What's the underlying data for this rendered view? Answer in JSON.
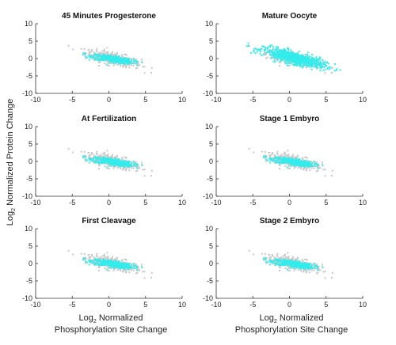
{
  "figure": {
    "ylabel_main": "Log",
    "ylabel_sub": "2",
    "ylabel_rest": " Normalized Protein Change",
    "xlabel_main": "Log",
    "xlabel_sub": "2",
    "xlabel_rest": " Normalized",
    "xlabel_line2": "Phosphorylation Site Change"
  },
  "colors": {
    "background_points": "#c8c8c8",
    "highlight_points": "#33ecec",
    "axis": "#333333"
  },
  "chart_data": [
    {
      "type": "scatter",
      "title": "45 Minutes Progesterone",
      "xlim": [
        -10,
        10
      ],
      "ylim": [
        -10,
        10
      ],
      "xticks": [
        -10,
        -5,
        0,
        5,
        10
      ],
      "yticks": [
        -10,
        -5,
        0,
        5,
        10
      ],
      "series": [
        {
          "role": "all-sites",
          "x_range": [
            -5.5,
            8.5
          ],
          "trend": "y = -0.45x + 0.2"
        },
        {
          "role": "highlighted",
          "x_range": [
            -3.5,
            4.5
          ],
          "trend": "y = -0.3x"
        }
      ]
    },
    {
      "type": "scatter",
      "title": "Mature Oocyte",
      "xlim": [
        -10,
        10
      ],
      "ylim": [
        -10,
        10
      ],
      "xticks": [
        -10,
        -5,
        0,
        5,
        10
      ],
      "yticks": [
        -10,
        -5,
        0,
        5,
        10
      ],
      "series": [
        {
          "role": "all-sites",
          "x_range": [
            -5.5,
            8.5
          ],
          "trend": "y = -0.45x + 0.2"
        },
        {
          "role": "highlighted",
          "x_range": [
            -5.8,
            9.0
          ],
          "trend": "y = -0.5x + 0.5"
        }
      ]
    },
    {
      "type": "scatter",
      "title": "At Fertilization",
      "xlim": [
        -10,
        10
      ],
      "ylim": [
        -10,
        10
      ],
      "xticks": [
        -10,
        -5,
        0,
        5,
        10
      ],
      "yticks": [
        -10,
        -5,
        0,
        5,
        10
      ],
      "series": [
        {
          "role": "all-sites",
          "x_range": [
            -5.5,
            8.5
          ],
          "trend": "y = -0.45x + 0.2"
        },
        {
          "role": "highlighted",
          "x_range": [
            -3.5,
            4.5
          ],
          "trend": "y = -0.3x"
        }
      ]
    },
    {
      "type": "scatter",
      "title": "Stage 1 Embyro",
      "xlim": [
        -10,
        10
      ],
      "ylim": [
        -10,
        10
      ],
      "xticks": [
        -10,
        -5,
        0,
        5,
        10
      ],
      "yticks": [
        -10,
        -5,
        0,
        5,
        10
      ],
      "series": [
        {
          "role": "all-sites",
          "x_range": [
            -5.5,
            8.5
          ],
          "trend": "y = -0.45x + 0.2"
        },
        {
          "role": "highlighted",
          "x_range": [
            -3.5,
            4.5
          ],
          "trend": "y = -0.3x"
        }
      ]
    },
    {
      "type": "scatter",
      "title": "First Cleavage",
      "xlim": [
        -10,
        10
      ],
      "ylim": [
        -10,
        10
      ],
      "xticks": [
        -10,
        -5,
        0,
        5,
        10
      ],
      "yticks": [
        -10,
        -5,
        0,
        5,
        10
      ],
      "series": [
        {
          "role": "all-sites",
          "x_range": [
            -5.5,
            8.5
          ],
          "trend": "y = -0.45x + 0.2"
        },
        {
          "role": "highlighted",
          "x_range": [
            -3.5,
            4.5
          ],
          "trend": "y = -0.3x"
        }
      ]
    },
    {
      "type": "scatter",
      "title": "Stage 2 Embyro",
      "xlim": [
        -10,
        10
      ],
      "ylim": [
        -10,
        10
      ],
      "xticks": [
        -10,
        -5,
        0,
        5,
        10
      ],
      "yticks": [
        -10,
        -5,
        0,
        5,
        10
      ],
      "series": [
        {
          "role": "all-sites",
          "x_range": [
            -5.5,
            8.5
          ],
          "trend": "y = -0.45x + 0.2"
        },
        {
          "role": "highlighted",
          "x_range": [
            -3.5,
            4.5
          ],
          "trend": "y = -0.3x"
        }
      ]
    }
  ]
}
